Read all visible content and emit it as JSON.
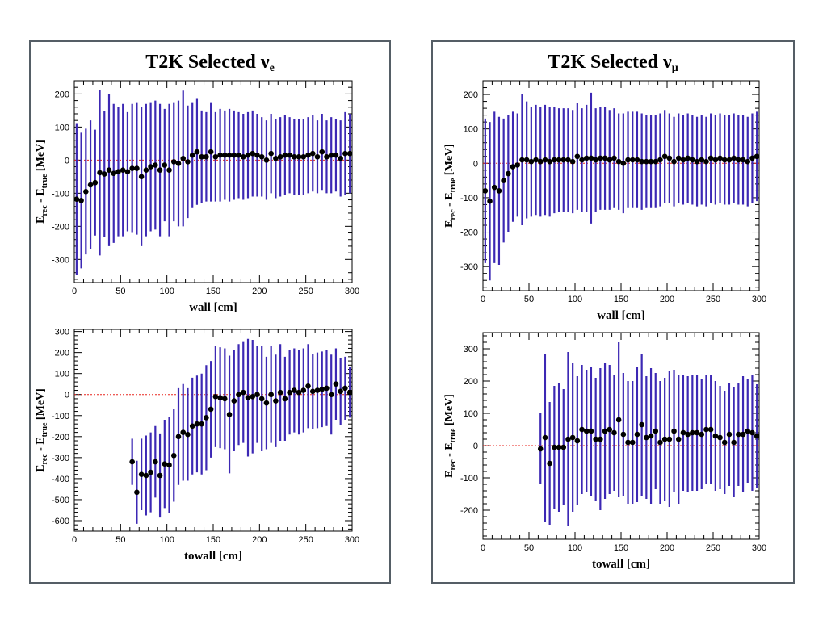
{
  "colors": {
    "errorbar": "#3c28b4",
    "marker": "#000000",
    "reference": "#e8251f",
    "frame": "#555e66"
  },
  "panels": [
    {
      "title_main": "T2K Selected ν",
      "title_sub": "e"
    },
    {
      "title_main": "T2K Selected ν",
      "title_sub": "μ"
    }
  ],
  "chart_data": [
    {
      "type": "scatter",
      "title": "T2K Selected νe",
      "xlabel": "wall [cm]",
      "ylabel_main": "E",
      "ylabel_sub1": "rec",
      "ylabel_mid": " - E",
      "ylabel_sub2": "true",
      "ylabel_unit": " [MeV]",
      "xlim": [
        0,
        300
      ],
      "ylim": [
        -370,
        240
      ],
      "xticks": [
        0,
        50,
        100,
        150,
        200,
        250,
        300
      ],
      "yticks": [
        -300,
        -200,
        -100,
        0,
        100,
        200
      ],
      "reference_y": 0,
      "x": [
        2.5,
        7.5,
        12.5,
        17.5,
        22.5,
        27.5,
        32.5,
        37.5,
        42.5,
        47.5,
        52.5,
        57.5,
        62.5,
        67.5,
        72.5,
        77.5,
        82.5,
        87.5,
        92.5,
        97.5,
        102.5,
        107.5,
        112.5,
        117.5,
        122.5,
        127.5,
        132.5,
        137.5,
        142.5,
        147.5,
        152.5,
        157.5,
        162.5,
        167.5,
        172.5,
        177.5,
        182.5,
        187.5,
        192.5,
        197.5,
        202.5,
        207.5,
        212.5,
        217.5,
        222.5,
        227.5,
        232.5,
        237.5,
        242.5,
        247.5,
        252.5,
        257.5,
        262.5,
        267.5,
        272.5,
        277.5,
        282.5,
        287.5,
        292.5,
        297.5
      ],
      "y": [
        -118,
        -122,
        -95,
        -75,
        -68,
        -38,
        -42,
        -30,
        -40,
        -35,
        -30,
        -35,
        -25,
        -25,
        -50,
        -30,
        -20,
        -15,
        -30,
        -15,
        -30,
        -5,
        -10,
        5,
        -5,
        15,
        25,
        10,
        10,
        25,
        10,
        15,
        15,
        15,
        15,
        15,
        10,
        15,
        20,
        15,
        10,
        0,
        20,
        5,
        10,
        15,
        15,
        10,
        10,
        10,
        15,
        20,
        10,
        25,
        10,
        15,
        15,
        5,
        20,
        20
      ],
      "err": [
        230,
        205,
        190,
        195,
        160,
        250,
        190,
        230,
        210,
        195,
        200,
        180,
        195,
        200,
        210,
        200,
        195,
        195,
        200,
        170,
        200,
        180,
        190,
        205,
        170,
        160,
        160,
        140,
        135,
        150,
        135,
        140,
        135,
        140,
        135,
        130,
        130,
        130,
        130,
        125,
        120,
        120,
        120,
        120,
        120,
        120,
        115,
        115,
        115,
        115,
        115,
        115,
        110,
        115,
        110,
        115,
        110,
        115,
        125,
        120
      ]
    },
    {
      "type": "scatter",
      "title": "T2K Selected νe",
      "xlabel": "towall [cm]",
      "ylabel_main": "E",
      "ylabel_sub1": "rec",
      "ylabel_mid": " - E",
      "ylabel_sub2": "true",
      "ylabel_unit": " [MeV]",
      "xlim": [
        0,
        300
      ],
      "ylim": [
        -650,
        310
      ],
      "xticks": [
        0,
        50,
        100,
        150,
        200,
        250,
        300
      ],
      "yticks": [
        -600,
        -500,
        -400,
        -300,
        -200,
        -100,
        0,
        100,
        200,
        300
      ],
      "reference_y": 0,
      "x": [
        62.5,
        67.5,
        72.5,
        77.5,
        82.5,
        87.5,
        92.5,
        97.5,
        102.5,
        107.5,
        112.5,
        117.5,
        122.5,
        127.5,
        132.5,
        137.5,
        142.5,
        147.5,
        152.5,
        157.5,
        162.5,
        167.5,
        172.5,
        177.5,
        182.5,
        187.5,
        192.5,
        197.5,
        202.5,
        207.5,
        212.5,
        217.5,
        222.5,
        227.5,
        232.5,
        237.5,
        242.5,
        247.5,
        252.5,
        257.5,
        262.5,
        267.5,
        272.5,
        277.5,
        282.5,
        287.5,
        292.5,
        297.5
      ],
      "y": [
        -320,
        -465,
        -380,
        -385,
        -370,
        -320,
        -385,
        -330,
        -335,
        -290,
        -200,
        -180,
        -190,
        -150,
        -140,
        -140,
        -110,
        -70,
        -10,
        -15,
        -20,
        -95,
        -30,
        0,
        10,
        -15,
        -10,
        0,
        -20,
        -40,
        0,
        -30,
        10,
        -20,
        10,
        20,
        10,
        20,
        40,
        15,
        20,
        25,
        30,
        0,
        50,
        15,
        30,
        10
      ],
      "err": [
        110,
        150,
        170,
        190,
        190,
        170,
        200,
        210,
        230,
        220,
        230,
        230,
        220,
        230,
        230,
        240,
        250,
        230,
        240,
        240,
        240,
        280,
        240,
        240,
        240,
        280,
        270,
        230,
        250,
        220,
        230,
        220,
        230,
        200,
        200,
        200,
        200,
        200,
        200,
        180,
        180,
        180,
        180,
        190,
        170,
        160,
        150,
        120
      ]
    },
    {
      "type": "scatter",
      "title": "T2K Selected νμ",
      "xlabel": "wall [cm]",
      "ylabel_main": "E",
      "ylabel_sub1": "rec",
      "ylabel_mid": " - E",
      "ylabel_sub2": "true",
      "ylabel_unit": " [MeV]",
      "xlim": [
        0,
        300
      ],
      "ylim": [
        -370,
        240
      ],
      "xticks": [
        0,
        50,
        100,
        150,
        200,
        250,
        300
      ],
      "yticks": [
        -300,
        -200,
        -100,
        0,
        100,
        200
      ],
      "reference_y": 0,
      "x": [
        2.5,
        7.5,
        12.5,
        17.5,
        22.5,
        27.5,
        32.5,
        37.5,
        42.5,
        47.5,
        52.5,
        57.5,
        62.5,
        67.5,
        72.5,
        77.5,
        82.5,
        87.5,
        92.5,
        97.5,
        102.5,
        107.5,
        112.5,
        117.5,
        122.5,
        127.5,
        132.5,
        137.5,
        142.5,
        147.5,
        152.5,
        157.5,
        162.5,
        167.5,
        172.5,
        177.5,
        182.5,
        187.5,
        192.5,
        197.5,
        202.5,
        207.5,
        212.5,
        217.5,
        222.5,
        227.5,
        232.5,
        237.5,
        242.5,
        247.5,
        252.5,
        257.5,
        262.5,
        267.5,
        272.5,
        277.5,
        282.5,
        287.5,
        292.5,
        297.5
      ],
      "y": [
        -80,
        -110,
        -70,
        -80,
        -50,
        -30,
        -10,
        -5,
        10,
        10,
        5,
        10,
        5,
        10,
        5,
        10,
        10,
        10,
        10,
        5,
        20,
        10,
        15,
        15,
        10,
        15,
        15,
        10,
        15,
        5,
        0,
        10,
        10,
        10,
        5,
        5,
        5,
        5,
        10,
        20,
        15,
        5,
        15,
        10,
        15,
        10,
        5,
        10,
        5,
        15,
        10,
        15,
        10,
        10,
        15,
        10,
        10,
        5,
        15,
        20
      ],
      "err": [
        210,
        230,
        220,
        215,
        180,
        170,
        160,
        150,
        190,
        170,
        160,
        160,
        160,
        160,
        160,
        155,
        150,
        150,
        150,
        150,
        155,
        150,
        155,
        190,
        150,
        150,
        150,
        145,
        145,
        140,
        145,
        140,
        140,
        140,
        140,
        135,
        135,
        135,
        135,
        135,
        130,
        130,
        130,
        130,
        130,
        130,
        130,
        130,
        130,
        130,
        130,
        130,
        130,
        130,
        130,
        130,
        130,
        130,
        130,
        130
      ]
    },
    {
      "type": "scatter",
      "title": "T2K Selected νμ",
      "xlabel": "towall [cm]",
      "ylabel_main": "E",
      "ylabel_sub1": "rec",
      "ylabel_mid": " - E",
      "ylabel_sub2": "true",
      "ylabel_unit": " [MeV]",
      "xlim": [
        0,
        300
      ],
      "ylim": [
        -290,
        350
      ],
      "xticks": [
        0,
        50,
        100,
        150,
        200,
        250,
        300
      ],
      "yticks": [
        -200,
        -100,
        0,
        100,
        200,
        300
      ],
      "reference_y": 0,
      "x": [
        62.5,
        67.5,
        72.5,
        77.5,
        82.5,
        87.5,
        92.5,
        97.5,
        102.5,
        107.5,
        112.5,
        117.5,
        122.5,
        127.5,
        132.5,
        137.5,
        142.5,
        147.5,
        152.5,
        157.5,
        162.5,
        167.5,
        172.5,
        177.5,
        182.5,
        187.5,
        192.5,
        197.5,
        202.5,
        207.5,
        212.5,
        217.5,
        222.5,
        227.5,
        232.5,
        237.5,
        242.5,
        247.5,
        252.5,
        257.5,
        262.5,
        267.5,
        272.5,
        277.5,
        282.5,
        287.5,
        292.5,
        297.5
      ],
      "y": [
        -10,
        25,
        -55,
        -5,
        -5,
        -5,
        20,
        25,
        15,
        50,
        45,
        45,
        20,
        20,
        45,
        50,
        40,
        80,
        35,
        10,
        10,
        35,
        65,
        25,
        30,
        45,
        10,
        20,
        20,
        45,
        20,
        40,
        35,
        40,
        40,
        35,
        50,
        50,
        30,
        25,
        10,
        35,
        10,
        35,
        35,
        45,
        40,
        30
      ],
      "err": [
        110,
        260,
        190,
        190,
        200,
        180,
        270,
        230,
        200,
        200,
        190,
        200,
        190,
        220,
        210,
        200,
        180,
        240,
        190,
        190,
        190,
        210,
        220,
        190,
        210,
        180,
        190,
        190,
        210,
        190,
        200,
        180,
        180,
        180,
        180,
        170,
        170,
        170,
        170,
        160,
        160,
        160,
        170,
        160,
        180,
        160,
        180,
        160
      ]
    }
  ]
}
